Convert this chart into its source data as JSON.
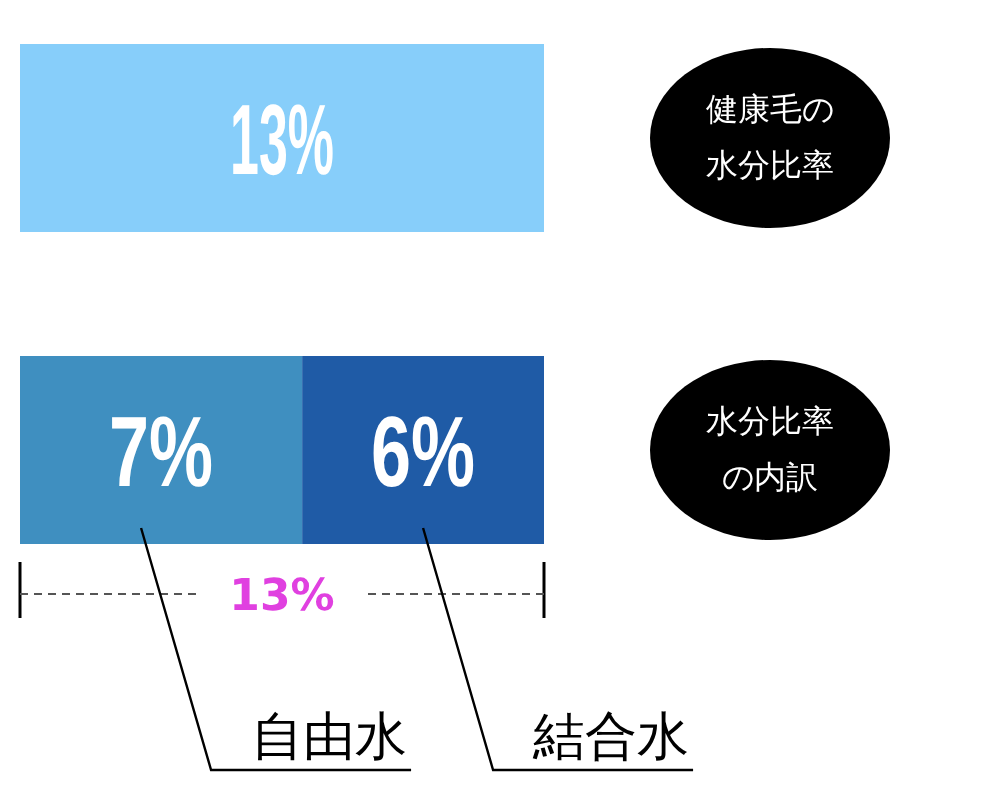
{
  "chart_data": {
    "type": "bar",
    "orientation": "horizontal",
    "stacked": true,
    "categories": [
      "健康毛の水分比率",
      "水分比率の内訳"
    ],
    "series": [
      {
        "color": "#87cefa",
        "values": [
          13,
          null
        ],
        "value_labels": [
          "13%",
          null
        ]
      },
      {
        "name": "自由水",
        "color": "#3f8fc0",
        "values": [
          null,
          7
        ],
        "value_labels": [
          null,
          "7%"
        ]
      },
      {
        "name": "結合水",
        "color": "#1f5ba6",
        "values": [
          null,
          6
        ],
        "value_labels": [
          null,
          "6%"
        ]
      }
    ],
    "annotations": [
      "13%"
    ]
  }
}
